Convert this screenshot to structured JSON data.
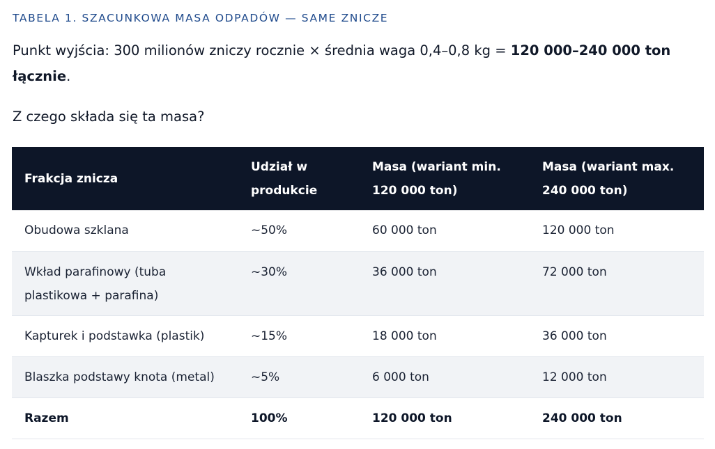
{
  "caption": "TABELA 1. SZACUNKOWA MASA ODPADÓW — SAME ZNICZE",
  "intro": {
    "text": "Punkt wyjścia: 300 milionów zniczy rocznie × średnia waga 0,4–0,8 kg = ",
    "strong": "120 000–240 000 ton łącznie",
    "end": "."
  },
  "question": "Z czego składa się ta masa?",
  "table": {
    "headers": [
      "Frakcja znicza",
      "Udział w produkcie",
      "Masa (wariant min. 120 000 ton)",
      "Masa (wariant max. 240 000 ton)"
    ],
    "rows": [
      [
        "Obudowa szklana",
        "~50%",
        "60 000 ton",
        "120 000 ton"
      ],
      [
        "Wkład parafinowy (tuba plastikowa + parafina)",
        "~30%",
        "36 000 ton",
        "72 000 ton"
      ],
      [
        "Kapturek i podstawka (plastik)",
        "~15%",
        "18 000 ton",
        "36 000 ton"
      ],
      [
        "Blaszka podstawy knota (metal)",
        "~5%",
        "6 000 ton",
        "12 000 ton"
      ],
      [
        "Razem",
        "100%",
        "120 000 ton",
        "240 000 ton"
      ]
    ]
  },
  "colors": {
    "header_bg": "#0d1628",
    "caption": "#1f4a8c",
    "shaded_row": "#f1f3f6"
  }
}
